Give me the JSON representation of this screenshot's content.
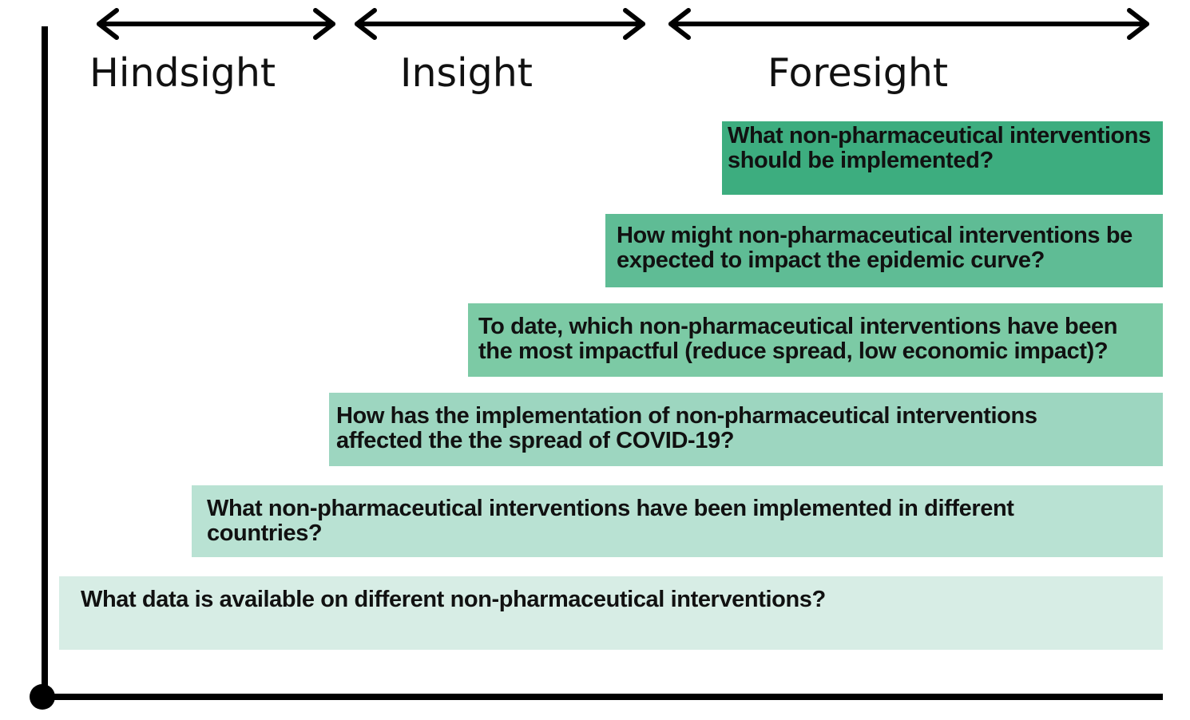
{
  "phases": [
    {
      "label": "Hindsight"
    },
    {
      "label": "Insight"
    },
    {
      "label": "Foresight"
    }
  ],
  "questions": [
    {
      "text": "What non-pharmaceutical interventions should be implemented?",
      "color": "#3dad7f"
    },
    {
      "text": "How might non-pharmaceutical interventions be expected to impact the epidemic curve?",
      "color": "#5fbc95"
    },
    {
      "text": "To date, which non-pharmaceutical interventions have been the most impactful (reduce spread, low economic impact)?",
      "color": "#7ccaa5"
    },
    {
      "text": "How has the implementation of non-pharmaceutical interventions affected the the spread of COVID-19?",
      "color": "#9dd6c0"
    },
    {
      "text": "What non-pharmaceutical interventions have been implemented in different countries?",
      "color": "#b9e2d3"
    },
    {
      "text": "What data is available on different non-pharmaceutical interventions?",
      "color": "#d7ede5"
    }
  ]
}
